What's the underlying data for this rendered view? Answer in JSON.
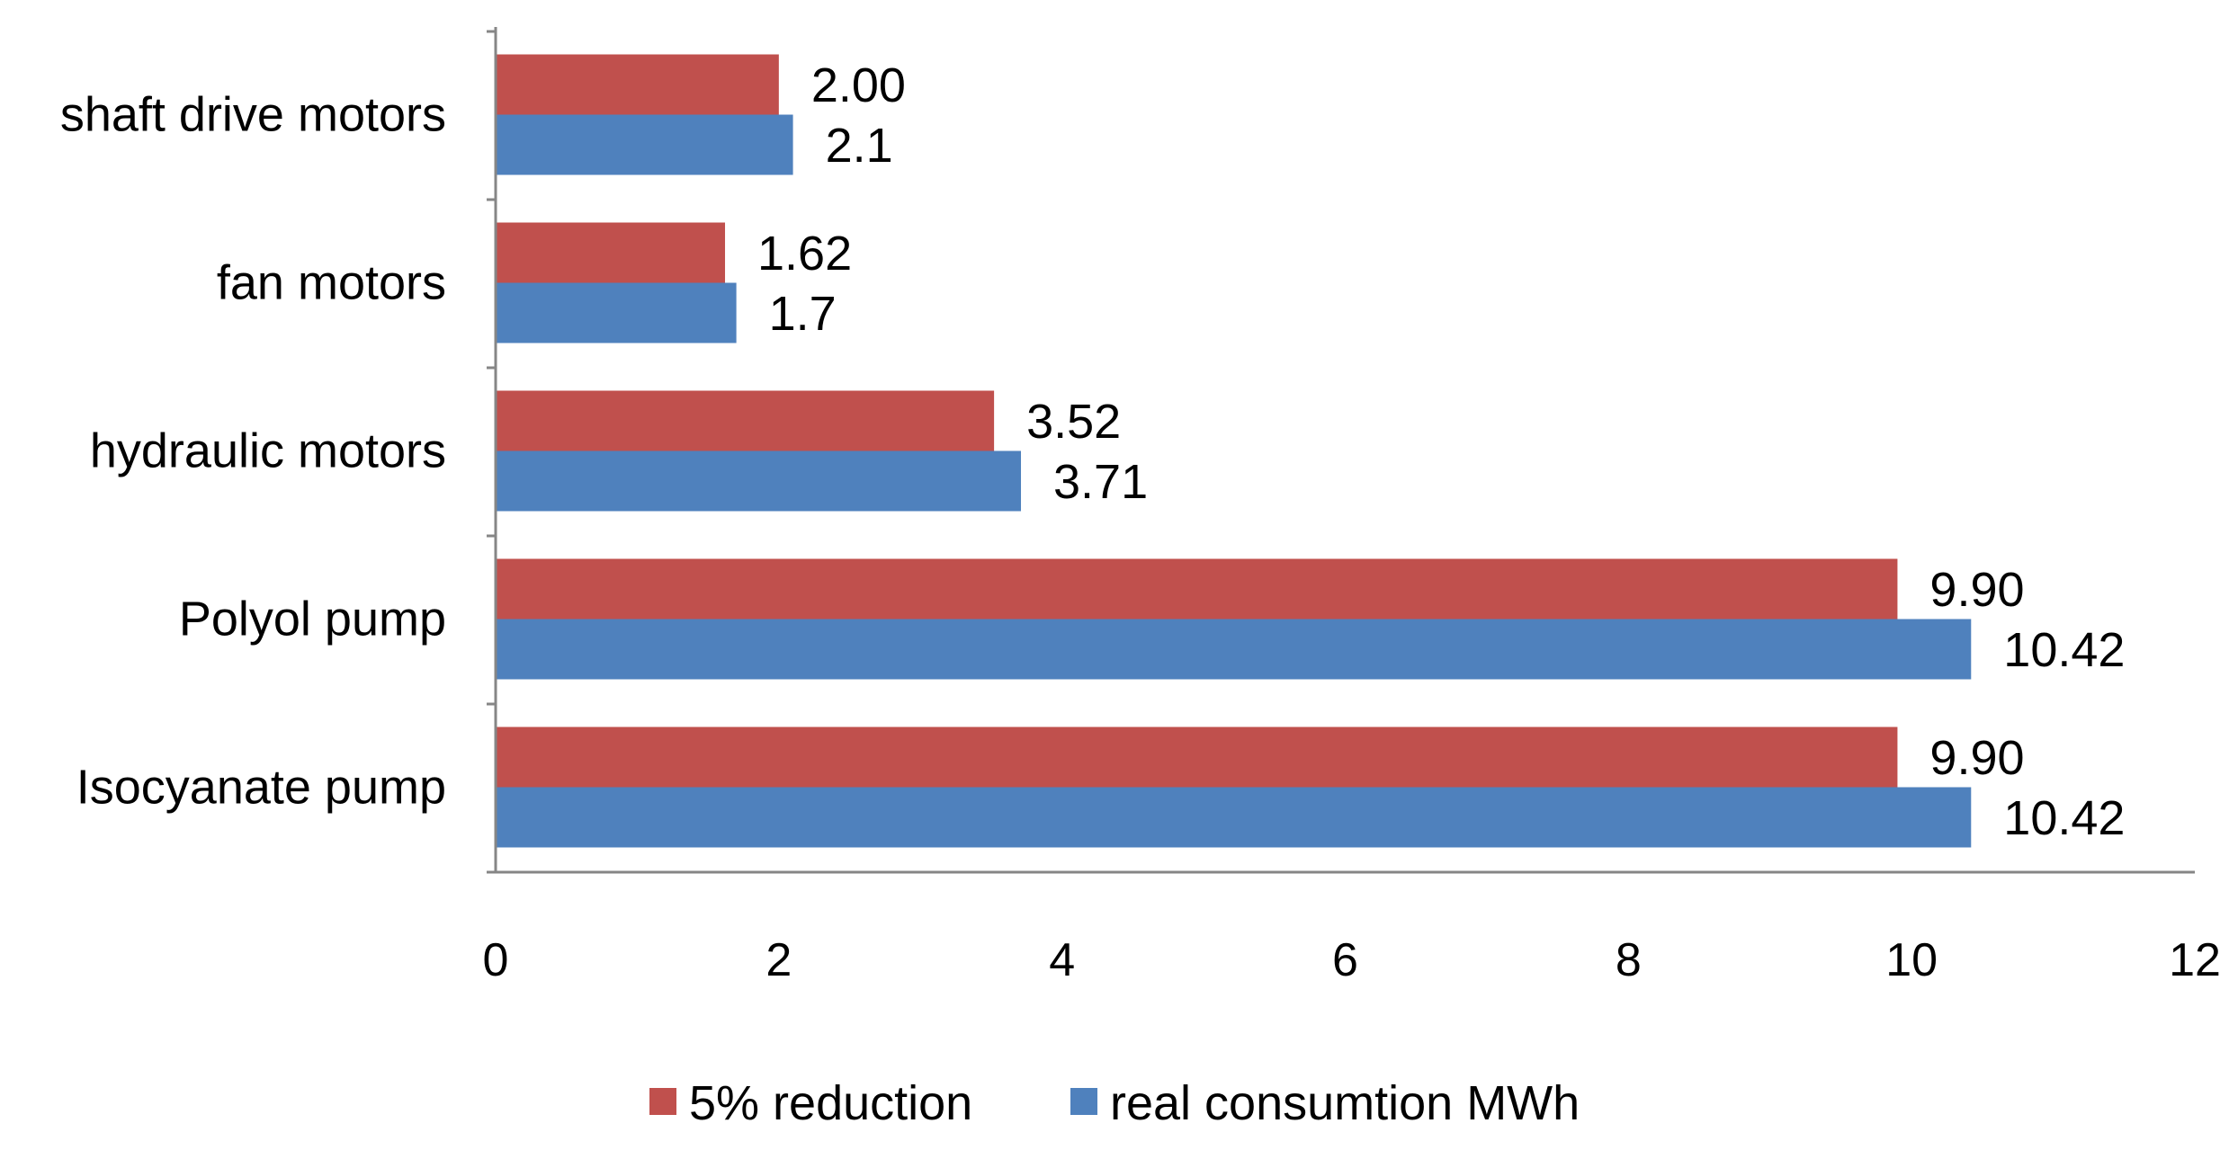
{
  "chart_data": {
    "type": "bar",
    "orientation": "horizontal",
    "title": "",
    "xlabel": "",
    "ylabel": "",
    "categories": [
      "shaft drive motors",
      "fan motors",
      "hydraulic motors",
      "Polyol pump",
      "Isocyanate pump"
    ],
    "series": [
      {
        "name": "5% reduction",
        "color": "#c0504d",
        "values": [
          2.0,
          1.62,
          3.52,
          9.9,
          9.9
        ],
        "labels": [
          "2.00",
          "1.62",
          "3.52",
          "9.90",
          "9.90"
        ]
      },
      {
        "name": "real consumtion MWh",
        "color": "#4f81bd",
        "values": [
          2.1,
          1.7,
          3.71,
          10.42,
          10.42
        ],
        "labels": [
          "2.1",
          "1.7",
          "3.71",
          "10.42",
          "10.42"
        ]
      }
    ],
    "xlim": [
      0,
      12
    ],
    "xticks": [
      "0",
      "2",
      "4",
      "6",
      "8",
      "10",
      "12"
    ],
    "grid": false,
    "legend_position": "bottom",
    "axis_color": "#868686"
  }
}
